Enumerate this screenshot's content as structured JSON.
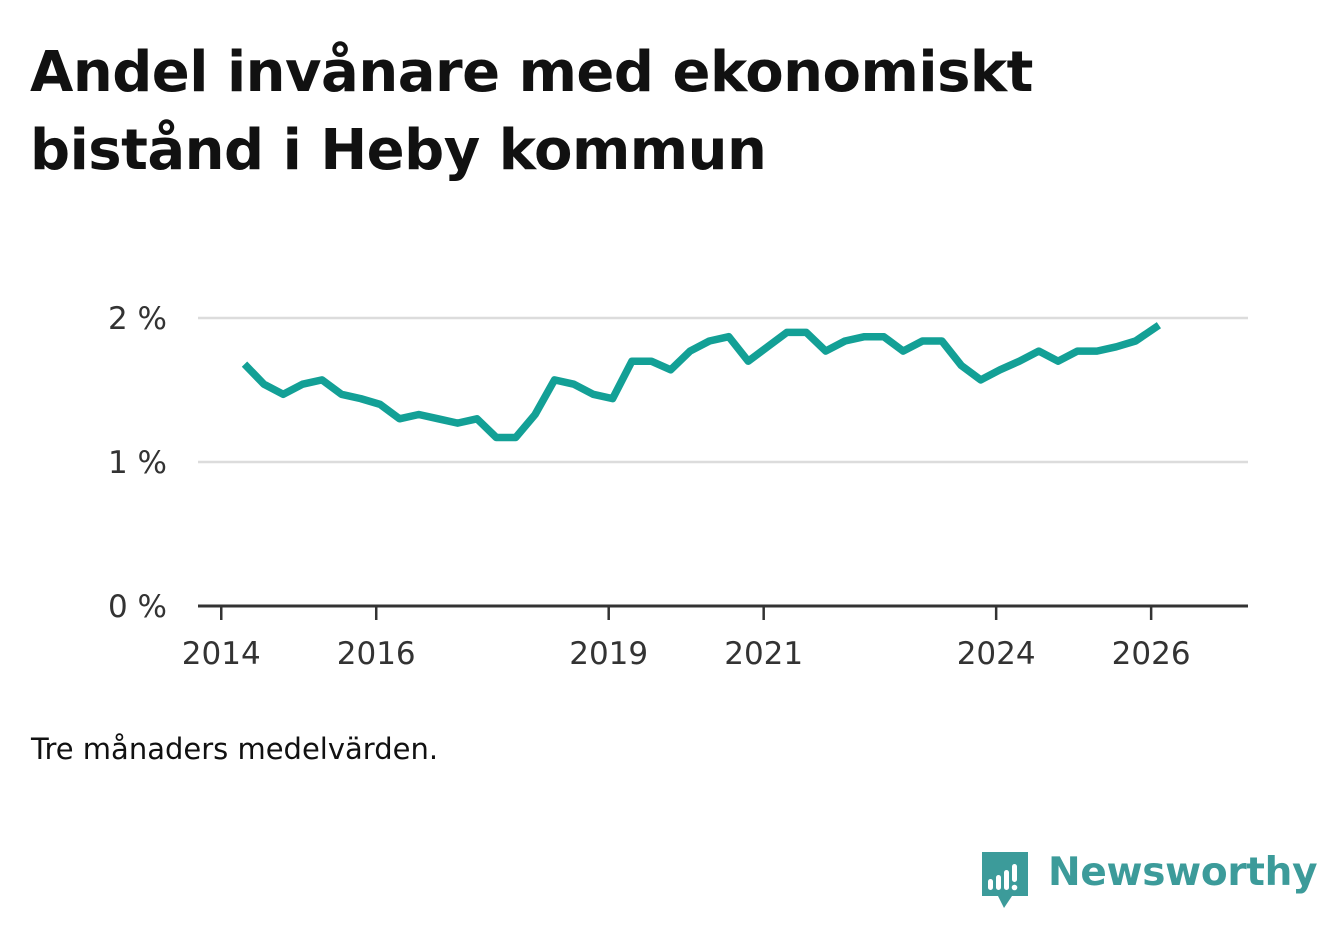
{
  "title": "Andel invånare med ekonomiskt bistånd i Heby kommun",
  "note": "Tre månaders medelvärden.",
  "brand": {
    "name": "Newsworthy",
    "icon": "bar-chart-speech-bubble-icon",
    "color": "#3c9b9a"
  },
  "colors": {
    "line": "#13a096",
    "grid": "#dcdcdc",
    "axis": "#333333",
    "text": "#111111"
  },
  "chart_data": {
    "type": "line",
    "title": "Andel invånare med ekonomiskt bistånd i Heby kommun",
    "xlabel": "",
    "ylabel": "",
    "xlim": [
      2013.7,
      2027.25
    ],
    "ylim": [
      0,
      2.1
    ],
    "yticks": [
      {
        "value": 0,
        "label": "0 %"
      },
      {
        "value": 1,
        "label": "1 %"
      },
      {
        "value": 2,
        "label": "2 %"
      }
    ],
    "xticks": [
      {
        "value": 2014,
        "label": "2014"
      },
      {
        "value": 2016,
        "label": "2016"
      },
      {
        "value": 2019,
        "label": "2019"
      },
      {
        "value": 2021,
        "label": "2021"
      },
      {
        "value": 2024,
        "label": "2024"
      },
      {
        "value": 2026,
        "label": "2026"
      }
    ],
    "grid": true,
    "series": [
      {
        "name": "Andel invånare med ekonomiskt bistånd",
        "x": [
          2014.3,
          2014.55,
          2014.8,
          2015.05,
          2015.3,
          2015.55,
          2015.8,
          2016.05,
          2016.3,
          2016.55,
          2016.8,
          2017.05,
          2017.3,
          2017.55,
          2017.8,
          2018.05,
          2018.3,
          2018.55,
          2018.8,
          2019.05,
          2019.3,
          2019.55,
          2019.8,
          2020.05,
          2020.3,
          2020.55,
          2020.8,
          2021.05,
          2021.3,
          2021.55,
          2021.8,
          2022.05,
          2022.3,
          2022.55,
          2022.8,
          2023.05,
          2023.3,
          2023.55,
          2023.8,
          2024.05,
          2024.3,
          2024.55,
          2024.8,
          2025.05,
          2025.3,
          2025.55,
          2025.8,
          2026.1
        ],
        "values": [
          1.68,
          1.54,
          1.47,
          1.54,
          1.57,
          1.47,
          1.44,
          1.4,
          1.3,
          1.33,
          1.3,
          1.27,
          1.3,
          1.17,
          1.17,
          1.33,
          1.57,
          1.54,
          1.47,
          1.44,
          1.7,
          1.7,
          1.64,
          1.77,
          1.84,
          1.87,
          1.7,
          1.8,
          1.9,
          1.9,
          1.77,
          1.84,
          1.87,
          1.87,
          1.77,
          1.84,
          1.84,
          1.67,
          1.57,
          1.64,
          1.7,
          1.77,
          1.7,
          1.77,
          1.77,
          1.8,
          1.84,
          1.95
        ]
      }
    ]
  }
}
